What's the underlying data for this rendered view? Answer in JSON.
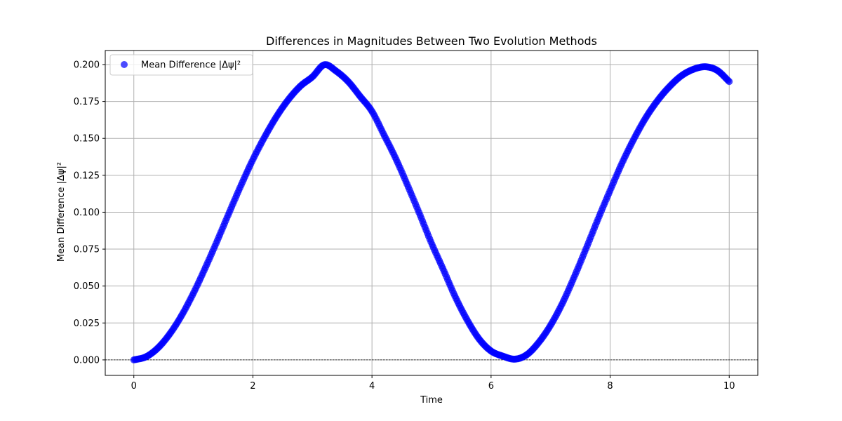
{
  "chart_data": {
    "type": "scatter",
    "title": "Differences in Magnitudes Between Two Evolution Methods",
    "xlabel": "Time",
    "ylabel": "Mean Difference |Δψ|²",
    "xlim": [
      -0.48,
      10.48
    ],
    "ylim": [
      -0.0105,
      0.2095
    ],
    "xticks": [
      0,
      2,
      4,
      6,
      8,
      10
    ],
    "xtick_labels": [
      "0",
      "2",
      "4",
      "6",
      "8",
      "10"
    ],
    "yticks": [
      0.0,
      0.025,
      0.05,
      0.075,
      0.1,
      0.125,
      0.15,
      0.175,
      0.2
    ],
    "ytick_labels": [
      "0.000",
      "0.025",
      "0.050",
      "0.075",
      "0.100",
      "0.125",
      "0.150",
      "0.175",
      "0.200"
    ],
    "grid": true,
    "reference_line": {
      "y": 0,
      "style": "dashed",
      "color": "#000000"
    },
    "legend": {
      "position": "top-left",
      "entries": [
        "Mean Difference |Δψ|²"
      ]
    },
    "series": [
      {
        "name": "Mean Difference |Δψ|²",
        "color": "#0000ff",
        "alpha": 0.7,
        "x": [
          0.0,
          0.2,
          0.4,
          0.6,
          0.8,
          1.0,
          1.2,
          1.4,
          1.6,
          1.8,
          2.0,
          2.2,
          2.4,
          2.6,
          2.8,
          3.0,
          3.2,
          3.4,
          3.6,
          3.8,
          4.0,
          4.2,
          4.4,
          4.6,
          4.8,
          5.0,
          5.2,
          5.4,
          5.6,
          5.8,
          6.0,
          6.2,
          6.4,
          6.6,
          6.8,
          7.0,
          7.2,
          7.4,
          7.6,
          7.8,
          8.0,
          8.2,
          8.4,
          8.6,
          8.8,
          9.0,
          9.2,
          9.4,
          9.6,
          9.8,
          10.0
        ],
        "y": [
          0.0,
          0.002,
          0.0079,
          0.0174,
          0.0299,
          0.0451,
          0.0623,
          0.0806,
          0.0996,
          0.1182,
          0.1357,
          0.1512,
          0.165,
          0.1765,
          0.1855,
          0.1917,
          0.1999,
          0.1955,
          0.1885,
          0.1785,
          0.1683,
          0.1525,
          0.1363,
          0.118,
          0.0988,
          0.079,
          0.061,
          0.0426,
          0.0269,
          0.0141,
          0.006,
          0.0025,
          0.0005,
          0.0035,
          0.0118,
          0.0235,
          0.0385,
          0.0565,
          0.0758,
          0.0957,
          0.1148,
          0.1333,
          0.1497,
          0.1641,
          0.1758,
          0.1852,
          0.1925,
          0.1968,
          0.1985,
          0.196,
          0.1885
        ]
      }
    ]
  }
}
